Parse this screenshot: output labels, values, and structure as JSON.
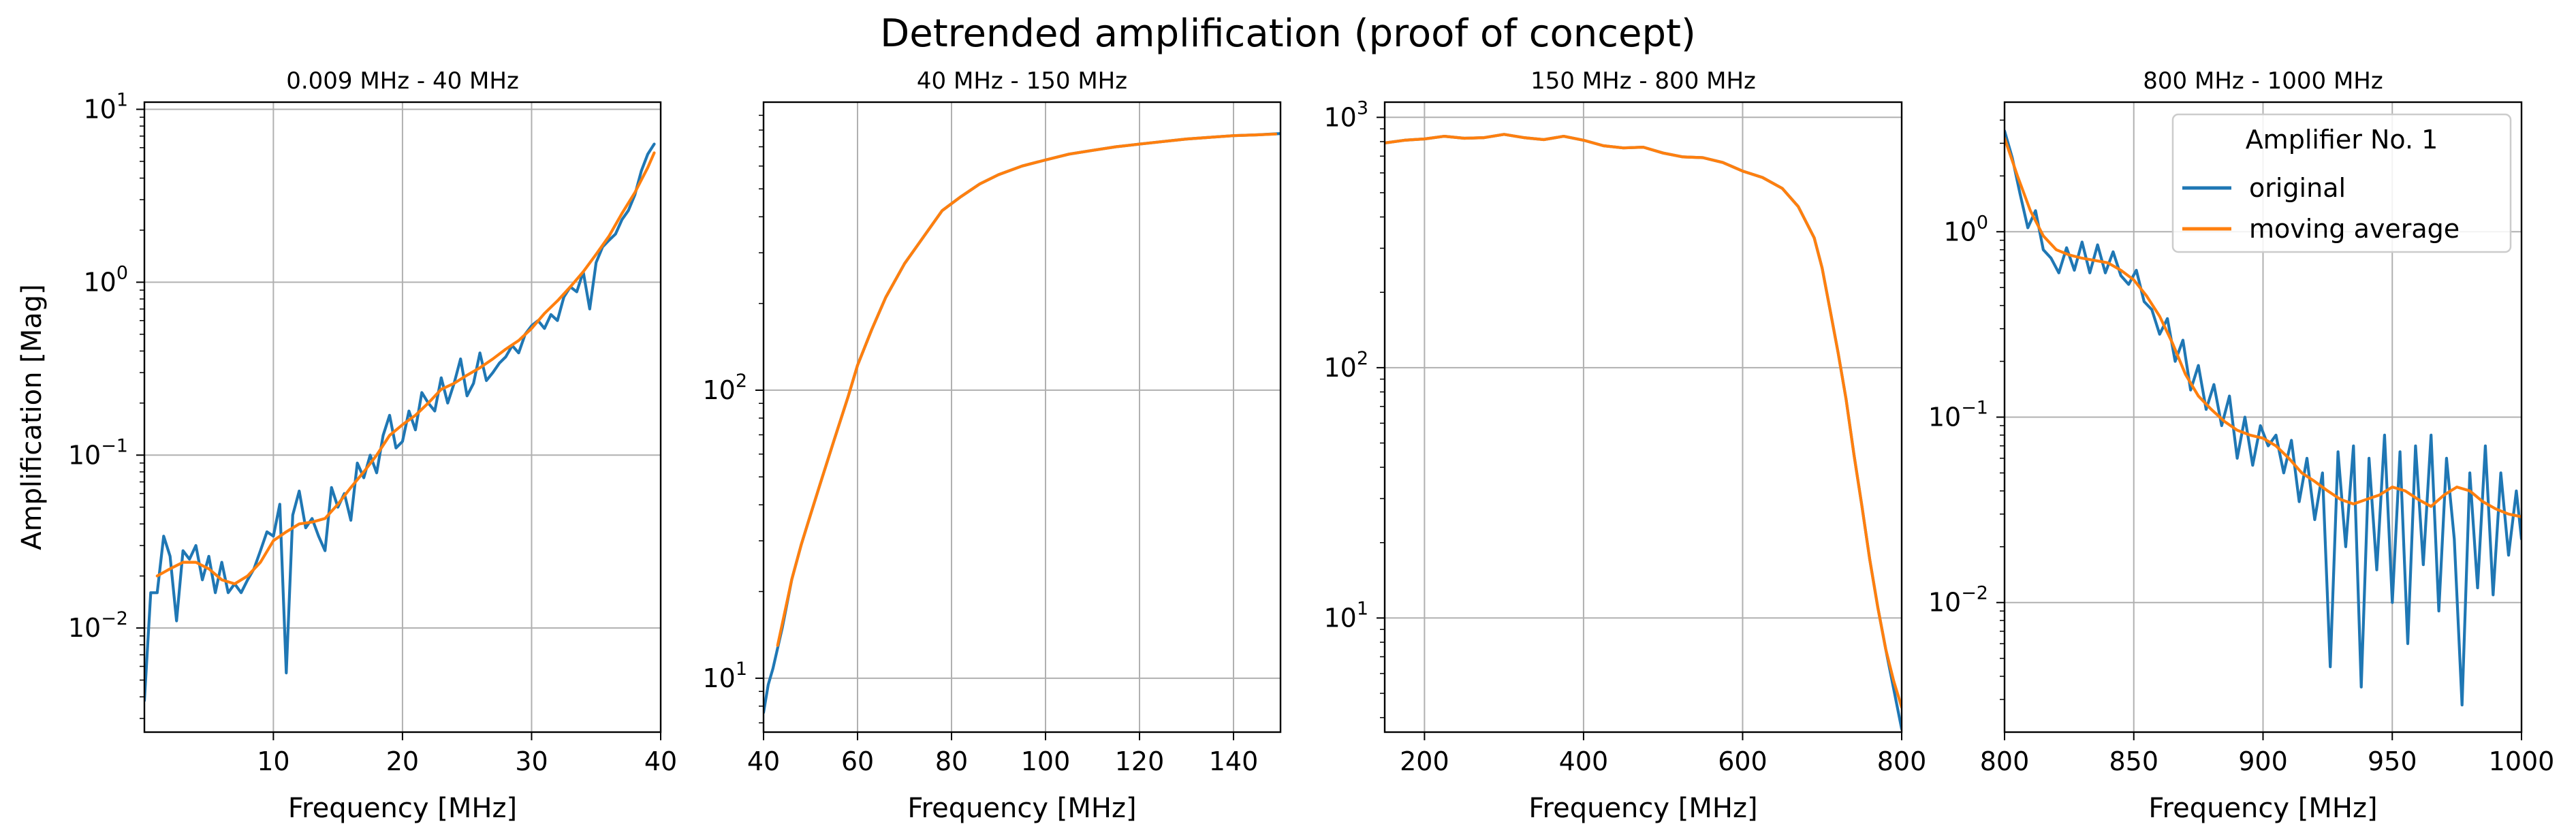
{
  "figure_title": "Detrended amplification (proof of concept)",
  "legend": {
    "title": "Amplifier No. 1",
    "entries": [
      {
        "label": "original",
        "color": "#1f77b4"
      },
      {
        "label": "moving average",
        "color": "#ff7f0e"
      }
    ]
  },
  "chart_data": [
    {
      "type": "line",
      "title": "0.009 MHz - 40 MHz",
      "xlabel": "Frequency [MHz]",
      "ylabel": "Amplification [Mag]",
      "xlim": [
        0.009,
        40
      ],
      "ylim": [
        0.0025,
        11
      ],
      "yscale": "log",
      "grid": true,
      "xticks": [
        10,
        20,
        30,
        40
      ],
      "yticks": [
        0.01,
        0.1,
        1,
        10
      ],
      "ytick_labels": [
        [
          "10",
          "−2"
        ],
        [
          "10",
          "−1"
        ],
        [
          "10",
          "0"
        ],
        [
          "10",
          "1"
        ]
      ],
      "series": [
        {
          "name": "original",
          "color": "#1f77b4",
          "x": [
            0.009,
            0.5,
            1,
            1.5,
            2,
            2.5,
            3,
            3.5,
            4,
            4.5,
            5,
            5.5,
            6,
            6.5,
            7,
            7.5,
            8,
            8.5,
            9,
            9.5,
            10,
            10.5,
            11,
            11.5,
            12,
            12.5,
            13,
            13.5,
            14,
            14.5,
            15,
            15.5,
            16,
            16.5,
            17,
            17.5,
            18,
            18.5,
            19,
            19.5,
            20,
            20.5,
            21,
            21.5,
            22,
            22.5,
            23,
            23.5,
            24,
            24.5,
            25,
            25.5,
            26,
            26.5,
            27,
            27.5,
            28,
            28.5,
            29,
            29.5,
            30,
            30.5,
            31,
            31.5,
            32,
            32.5,
            33,
            33.5,
            34,
            34.5,
            35,
            35.5,
            36,
            36.5,
            37,
            37.5,
            38,
            38.5,
            39,
            39.5
          ],
          "values": [
            0.0038,
            0.016,
            0.016,
            0.034,
            0.026,
            0.011,
            0.028,
            0.025,
            0.03,
            0.019,
            0.026,
            0.016,
            0.024,
            0.016,
            0.018,
            0.016,
            0.019,
            0.022,
            0.028,
            0.036,
            0.034,
            0.052,
            0.0055,
            0.045,
            0.062,
            0.038,
            0.043,
            0.034,
            0.028,
            0.065,
            0.05,
            0.06,
            0.042,
            0.09,
            0.074,
            0.1,
            0.079,
            0.13,
            0.17,
            0.11,
            0.12,
            0.18,
            0.14,
            0.23,
            0.2,
            0.18,
            0.28,
            0.2,
            0.26,
            0.36,
            0.22,
            0.26,
            0.39,
            0.27,
            0.3,
            0.34,
            0.37,
            0.43,
            0.39,
            0.5,
            0.56,
            0.6,
            0.54,
            0.65,
            0.6,
            0.82,
            0.94,
            0.88,
            1.15,
            0.7,
            1.3,
            1.6,
            1.75,
            1.9,
            2.3,
            2.6,
            3.2,
            4.4,
            5.5,
            6.3
          ]
        },
        {
          "name": "moving average",
          "color": "#ff7f0e",
          "x": [
            1,
            2,
            3,
            4,
            5,
            6,
            7,
            8,
            9,
            10,
            11,
            12,
            13,
            14,
            15,
            16,
            17,
            18,
            19,
            20,
            21,
            22,
            23,
            24,
            25,
            26,
            27,
            28,
            29,
            30,
            31,
            32,
            33,
            34,
            35,
            36,
            37,
            38,
            39,
            39.5
          ],
          "values": [
            0.02,
            0.022,
            0.024,
            0.024,
            0.022,
            0.019,
            0.018,
            0.02,
            0.024,
            0.032,
            0.036,
            0.04,
            0.041,
            0.043,
            0.052,
            0.065,
            0.08,
            0.1,
            0.13,
            0.15,
            0.17,
            0.2,
            0.24,
            0.26,
            0.29,
            0.32,
            0.36,
            0.41,
            0.46,
            0.54,
            0.66,
            0.78,
            0.94,
            1.15,
            1.45,
            1.85,
            2.5,
            3.3,
            4.6,
            5.6
          ]
        }
      ]
    },
    {
      "type": "line",
      "title": "40 MHz - 150 MHz",
      "xlabel": "Frequency [MHz]",
      "ylabel": "",
      "xlim": [
        40,
        150
      ],
      "ylim": [
        6.5,
        1000
      ],
      "yscale": "log",
      "grid": true,
      "xticks": [
        40,
        60,
        80,
        100,
        120,
        140
      ],
      "yticks": [
        10,
        100
      ],
      "ytick_labels": [
        [
          "10",
          "1"
        ],
        [
          "10",
          "2"
        ]
      ],
      "series": [
        {
          "name": "original",
          "color": "#1f77b4",
          "x": [
            40,
            41,
            42,
            44,
            46,
            48,
            50,
            52,
            55,
            58,
            60,
            63,
            66,
            70,
            74,
            78,
            82,
            86,
            90,
            95,
            100,
            105,
            110,
            115,
            120,
            125,
            130,
            135,
            140,
            145,
            150
          ],
          "values": [
            7.6,
            9.5,
            10.8,
            15,
            22,
            29,
            37,
            47,
            67,
            95,
            122,
            162,
            210,
            275,
            340,
            420,
            470,
            520,
            560,
            600,
            630,
            660,
            680,
            700,
            715,
            730,
            745,
            755,
            765,
            770,
            778
          ]
        },
        {
          "name": "moving average",
          "color": "#ff7f0e",
          "x": [
            43,
            44,
            46,
            48,
            50,
            52,
            55,
            58,
            60,
            63,
            66,
            70,
            74,
            78,
            82,
            86,
            90,
            95,
            100,
            105,
            110,
            115,
            120,
            125,
            130,
            135,
            140,
            145,
            149
          ],
          "values": [
            13,
            15.5,
            22,
            29,
            37,
            47,
            67,
            95,
            122,
            162,
            210,
            275,
            340,
            420,
            470,
            520,
            560,
            600,
            630,
            660,
            680,
            700,
            715,
            730,
            745,
            755,
            765,
            770,
            775
          ]
        }
      ]
    },
    {
      "type": "line",
      "title": "150 MHz - 800 MHz",
      "xlabel": "Frequency [MHz]",
      "ylabel": "",
      "xlim": [
        150,
        800
      ],
      "ylim": [
        3.5,
        1150
      ],
      "yscale": "log",
      "grid": true,
      "xticks": [
        200,
        400,
        600,
        800
      ],
      "yticks": [
        10,
        100,
        1000
      ],
      "ytick_labels": [
        [
          "10",
          "1"
        ],
        [
          "10",
          "2"
        ],
        [
          "10",
          "3"
        ]
      ],
      "series": [
        {
          "name": "original",
          "color": "#1f77b4",
          "x": [
            150,
            175,
            200,
            225,
            250,
            275,
            300,
            325,
            350,
            375,
            400,
            425,
            450,
            475,
            500,
            525,
            550,
            575,
            600,
            625,
            650,
            670,
            690,
            700,
            710,
            720,
            730,
            740,
            750,
            760,
            770,
            780,
            790,
            800
          ],
          "values": [
            790,
            810,
            820,
            840,
            825,
            830,
            855,
            830,
            815,
            840,
            810,
            770,
            755,
            760,
            720,
            695,
            690,
            660,
            610,
            575,
            520,
            440,
            330,
            250,
            170,
            115,
            75,
            45,
            28,
            17,
            11,
            7.5,
            5.2,
            3.6
          ]
        },
        {
          "name": "moving average",
          "color": "#ff7f0e",
          "x": [
            150,
            175,
            200,
            225,
            250,
            275,
            300,
            325,
            350,
            375,
            400,
            425,
            450,
            475,
            500,
            525,
            550,
            575,
            600,
            625,
            650,
            670,
            690,
            700,
            710,
            720,
            730,
            740,
            750,
            760,
            770,
            780,
            790,
            800
          ],
          "values": [
            790,
            810,
            820,
            840,
            825,
            830,
            855,
            830,
            815,
            840,
            810,
            770,
            755,
            760,
            720,
            695,
            690,
            660,
            610,
            575,
            520,
            440,
            330,
            250,
            170,
            115,
            75,
            45,
            28,
            17,
            11,
            7.5,
            5.6,
            4.4
          ]
        }
      ]
    },
    {
      "type": "line",
      "title": "800 MHz - 1000 MHz",
      "xlabel": "Frequency [MHz]",
      "ylabel": "",
      "xlim": [
        800,
        1000
      ],
      "ylim": [
        0.002,
        5
      ],
      "yscale": "log",
      "grid": true,
      "xticks": [
        800,
        850,
        900,
        950,
        1000
      ],
      "yticks": [
        0.01,
        0.1,
        1
      ],
      "ytick_labels": [
        [
          "10",
          "−2"
        ],
        [
          "10",
          "−1"
        ],
        [
          "10",
          "0"
        ]
      ],
      "series": [
        {
          "name": "original",
          "color": "#1f77b4",
          "x": [
            800,
            803,
            806,
            809,
            812,
            815,
            818,
            821,
            824,
            827,
            830,
            833,
            836,
            839,
            842,
            845,
            848,
            851,
            854,
            857,
            860,
            863,
            866,
            869,
            872,
            875,
            878,
            881,
            884,
            887,
            890,
            893,
            896,
            899,
            902,
            905,
            908,
            911,
            914,
            917,
            920,
            923,
            926,
            929,
            932,
            935,
            938,
            941,
            944,
            947,
            950,
            953,
            956,
            959,
            962,
            965,
            968,
            971,
            974,
            977,
            980,
            983,
            986,
            989,
            992,
            995,
            998,
            1000
          ],
          "values": [
            3.5,
            2.5,
            1.6,
            1.05,
            1.3,
            0.8,
            0.72,
            0.6,
            0.82,
            0.62,
            0.88,
            0.6,
            0.85,
            0.6,
            0.78,
            0.58,
            0.52,
            0.62,
            0.42,
            0.38,
            0.28,
            0.34,
            0.2,
            0.26,
            0.14,
            0.19,
            0.11,
            0.15,
            0.09,
            0.13,
            0.06,
            0.1,
            0.055,
            0.09,
            0.07,
            0.08,
            0.05,
            0.075,
            0.035,
            0.06,
            0.028,
            0.05,
            0.0045,
            0.065,
            0.02,
            0.07,
            0.0035,
            0.06,
            0.015,
            0.08,
            0.01,
            0.065,
            0.006,
            0.07,
            0.016,
            0.08,
            0.009,
            0.06,
            0.022,
            0.0028,
            0.05,
            0.012,
            0.07,
            0.011,
            0.05,
            0.018,
            0.04,
            0.022
          ]
        },
        {
          "name": "moving average",
          "color": "#ff7f0e",
          "x": [
            800,
            805,
            810,
            815,
            820,
            825,
            830,
            835,
            840,
            845,
            850,
            855,
            860,
            865,
            870,
            875,
            880,
            885,
            890,
            895,
            900,
            905,
            910,
            915,
            920,
            925,
            930,
            935,
            940,
            945,
            950,
            955,
            960,
            965,
            970,
            975,
            980,
            985,
            990,
            995,
            1000
          ],
          "values": [
            3.2,
            2.0,
            1.3,
            0.95,
            0.8,
            0.75,
            0.72,
            0.7,
            0.68,
            0.62,
            0.55,
            0.45,
            0.35,
            0.25,
            0.17,
            0.13,
            0.11,
            0.095,
            0.085,
            0.08,
            0.077,
            0.07,
            0.06,
            0.05,
            0.045,
            0.04,
            0.036,
            0.034,
            0.036,
            0.038,
            0.042,
            0.04,
            0.036,
            0.033,
            0.038,
            0.042,
            0.04,
            0.035,
            0.032,
            0.03,
            0.029
          ]
        }
      ]
    }
  ]
}
